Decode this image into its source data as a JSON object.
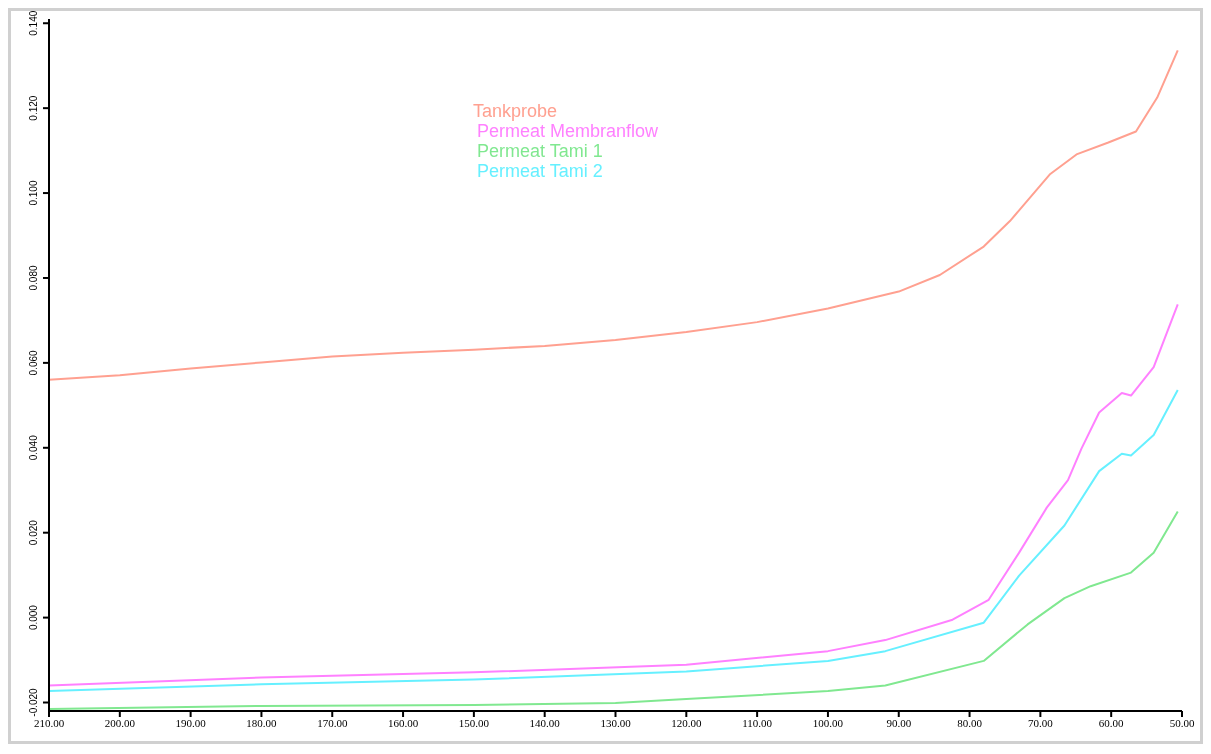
{
  "chart_data": {
    "type": "line",
    "xlim": [
      210,
      50
    ],
    "ylim": [
      -0.022,
      0.141
    ],
    "xticks": [
      {
        "value": 210,
        "label": "210.00"
      },
      {
        "value": 200,
        "label": "200.00"
      },
      {
        "value": 190,
        "label": "190.00"
      },
      {
        "value": 180,
        "label": "180.00"
      },
      {
        "value": 170,
        "label": "170.00"
      },
      {
        "value": 160,
        "label": "160.00"
      },
      {
        "value": 150,
        "label": "150.00"
      },
      {
        "value": 140,
        "label": "140.00"
      },
      {
        "value": 130,
        "label": "130.00"
      },
      {
        "value": 120,
        "label": "120.00"
      },
      {
        "value": 110,
        "label": "110.00"
      },
      {
        "value": 100,
        "label": "100.00"
      },
      {
        "value": 90,
        "label": "90.00"
      },
      {
        "value": 80,
        "label": "80.00"
      },
      {
        "value": 70,
        "label": "70.00"
      },
      {
        "value": 60,
        "label": "60.00"
      },
      {
        "value": 50,
        "label": "50.00"
      }
    ],
    "yticks": [
      {
        "value": -0.02,
        "label": "-0.020"
      },
      {
        "value": 0,
        "label": "0.000"
      },
      {
        "value": 0.02,
        "label": "0.020"
      },
      {
        "value": 0.04,
        "label": "0.040"
      },
      {
        "value": 0.06,
        "label": "0.060"
      },
      {
        "value": 0.08,
        "label": "0.080"
      },
      {
        "value": 0.1,
        "label": "0.100"
      },
      {
        "value": 0.12,
        "label": "0.120"
      },
      {
        "value": 0.14,
        "label": "0.140"
      }
    ],
    "grid": false,
    "legend": "top",
    "marker": "none",
    "line_style": "solid",
    "series": [
      {
        "name": "Tankprobe",
        "color": "#ffa090",
        "x": [
          210,
          200,
          190,
          180,
          170,
          160,
          150,
          140,
          130,
          120,
          110,
          100,
          90,
          84.2,
          78.0,
          74.3,
          68.6,
          64.9,
          60.4,
          56.5,
          53.5,
          50.6
        ],
        "values": [
          0.056,
          0.0571,
          0.0587,
          0.0601,
          0.0615,
          0.0624,
          0.0631,
          0.064,
          0.0654,
          0.0673,
          0.0696,
          0.0728,
          0.0768,
          0.0807,
          0.0874,
          0.0934,
          0.1045,
          0.1091,
          0.1119,
          0.1145,
          0.1225,
          0.1336
        ]
      },
      {
        "name": "Permeat Membranflow",
        "color": "#ff80ff",
        "x": [
          210,
          180,
          150,
          120,
          100,
          91.9,
          82.4,
          77.3,
          73.0,
          69.1,
          66.1,
          64.2,
          61.7,
          58.5,
          57.2,
          54.0,
          50.6
        ],
        "values": [
          -0.016,
          -0.0141,
          -0.0129,
          -0.0111,
          -0.0079,
          -0.0053,
          -0.0005,
          0.0042,
          0.0153,
          0.0259,
          0.0324,
          0.0398,
          0.0483,
          0.0529,
          0.0523,
          0.059,
          0.0738
        ]
      },
      {
        "name": "Permeat Tami 1",
        "color": "#80e890",
        "x": [
          210,
          180,
          150,
          130,
          120,
          100,
          91.9,
          78.0,
          71.8,
          66.6,
          62.9,
          57.2,
          54.0,
          50.6
        ],
        "values": [
          -0.0215,
          -0.0208,
          -0.0206,
          -0.0201,
          -0.0192,
          -0.0173,
          -0.016,
          -0.0102,
          -0.0016,
          0.0046,
          0.0074,
          0.0106,
          0.0153,
          0.025
        ]
      },
      {
        "name": "Permeat Tami 2",
        "color": "#66f0ff",
        "x": [
          210,
          180,
          150,
          120,
          100,
          91.9,
          78.0,
          73.0,
          66.6,
          61.7,
          58.5,
          57.2,
          54.0,
          50.6
        ],
        "values": [
          -0.0173,
          -0.0157,
          -0.0146,
          -0.0127,
          -0.0102,
          -0.0079,
          -0.0012,
          0.0099,
          0.0217,
          0.0345,
          0.0386,
          0.0382,
          0.043,
          0.0536
        ]
      }
    ]
  }
}
